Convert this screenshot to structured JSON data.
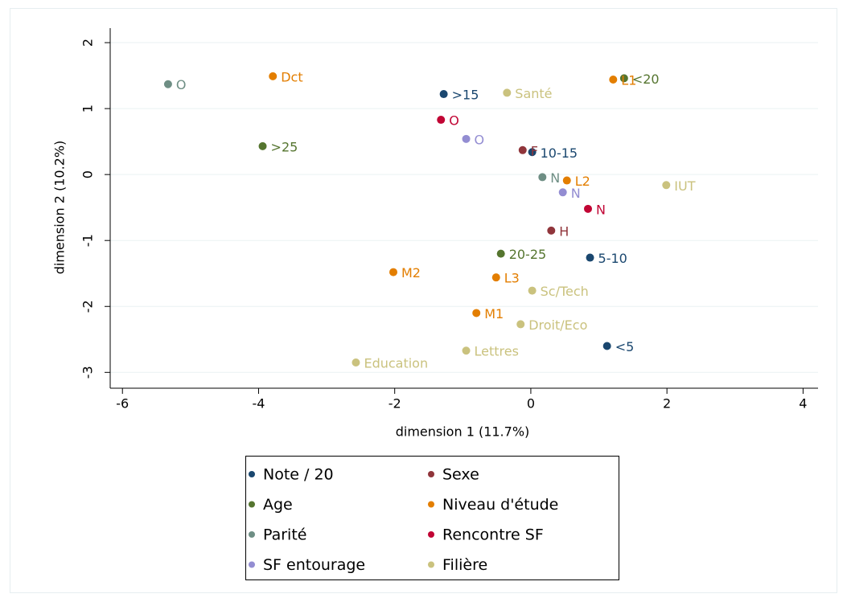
{
  "chart_data": {
    "type": "scatter",
    "xlabel": "dimension 1 (11.7%)",
    "ylabel": "dimension 2 (10.2%)",
    "xlim": [
      -6.18,
      4.22
    ],
    "ylim": [
      -3.24,
      2.22
    ],
    "xticks": [
      -6,
      -4,
      -2,
      0,
      2,
      4
    ],
    "yticks": [
      -3,
      -2,
      -1,
      0,
      1,
      2
    ],
    "grid": true,
    "legend": "bottom",
    "series": [
      {
        "name": "Note / 20",
        "color": "#1a476f",
        "x": [
          -1.28,
          0.02,
          0.87,
          1.12
        ],
        "y": [
          1.22,
          0.34,
          -1.26,
          -2.6
        ],
        "labels": [
          ">15",
          "10-15",
          "5-10",
          "<5"
        ]
      },
      {
        "name": "Sexe",
        "color": "#90353b",
        "x": [
          -0.12,
          0.3
        ],
        "y": [
          0.37,
          -0.85
        ],
        "labels": [
          "F",
          "H"
        ]
      },
      {
        "name": "Age",
        "color": "#55752f",
        "x": [
          1.37,
          -3.94,
          -0.44
        ],
        "y": [
          1.46,
          0.43,
          -1.2
        ],
        "labels": [
          "<20",
          ">25",
          "20-25"
        ]
      },
      {
        "name": "Niveau d'étude",
        "color": "#e37e00",
        "x": [
          -3.79,
          1.21,
          0.53,
          -2.02,
          -0.51,
          -0.8
        ],
        "y": [
          1.49,
          1.44,
          -0.09,
          -1.48,
          -1.56,
          -2.1
        ],
        "labels": [
          "Dct",
          "L1",
          "L2",
          "M2",
          "L3",
          "M1"
        ]
      },
      {
        "name": "Parité",
        "color": "#6e8e84",
        "x": [
          -5.33,
          0.17
        ],
        "y": [
          1.37,
          -0.04
        ],
        "labels": [
          "O",
          "N"
        ]
      },
      {
        "name": "Rencontre SF",
        "color": "#c10534",
        "x": [
          -1.32,
          0.84
        ],
        "y": [
          0.83,
          -0.52
        ],
        "labels": [
          "O",
          "N"
        ]
      },
      {
        "name": "SF entourage",
        "color": "#938dd2",
        "x": [
          -0.95,
          0.47
        ],
        "y": [
          0.54,
          -0.27
        ],
        "labels": [
          "O",
          "N"
        ]
      },
      {
        "name": "Filière",
        "color": "#cac27e",
        "x": [
          -0.35,
          1.99,
          0.02,
          -0.15,
          -0.95,
          -2.57
        ],
        "y": [
          1.24,
          -0.16,
          -1.76,
          -2.27,
          -2.67,
          -2.85
        ],
        "labels": [
          "Santé",
          "IUT",
          "Sc/Tech",
          "Droit/Eco",
          "Lettres",
          "Education"
        ]
      }
    ]
  }
}
